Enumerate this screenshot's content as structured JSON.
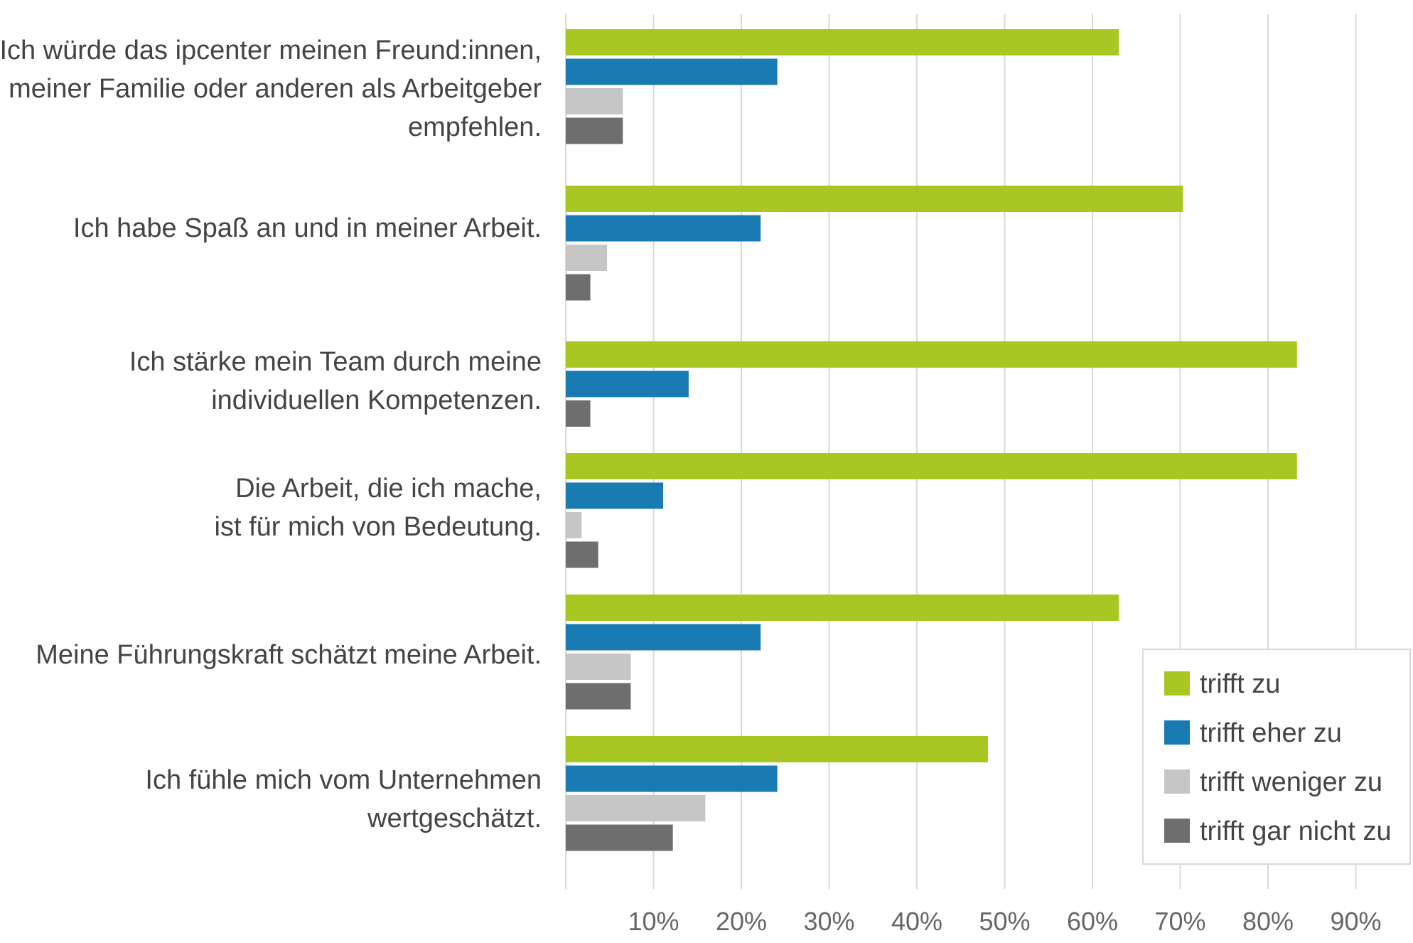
{
  "chart_data": {
    "type": "bar",
    "orientation": "horizontal",
    "title": "",
    "xlabel": "",
    "ylabel": "",
    "xlim": [
      0,
      90
    ],
    "x_ticks": [
      10,
      20,
      30,
      40,
      50,
      60,
      70,
      80,
      90
    ],
    "x_tick_labels": [
      "10%",
      "20%",
      "30%",
      "40%",
      "50%",
      "60%",
      "70%",
      "80%",
      "90%"
    ],
    "grid": "vertical",
    "legend_position": "bottom-right",
    "categories": [
      [
        "Ich würde das ipcenter meinen Freund:innen,",
        "meiner Familie oder anderen als Arbeitgeber",
        "empfehlen."
      ],
      [
        "Ich habe Spaß an und in meiner Arbeit."
      ],
      [
        "Ich stärke mein Team durch meine",
        "individuellen Kompetenzen."
      ],
      [
        "Die Arbeit, die ich mache,",
        "ist für mich von Bedeutung."
      ],
      [
        "Meine Führungskraft schätzt meine Arbeit."
      ],
      [
        "Ich fühle mich vom Unternehmen",
        "wertgeschätzt."
      ]
    ],
    "series": [
      {
        "name": "trifft zu",
        "color": "#a8c722",
        "values": [
          63,
          70.3,
          83.3,
          83.3,
          63,
          48.1
        ]
      },
      {
        "name": "trifft eher zu",
        "color": "#1a7bb3",
        "values": [
          24.1,
          22.2,
          14,
          11.1,
          22.2,
          24.1
        ]
      },
      {
        "name": "trifft weniger zu",
        "color": "#c6c6c6",
        "values": [
          6.5,
          4.7,
          0,
          1.8,
          7.4,
          15.9
        ]
      },
      {
        "name": "trifft gar nicht zu",
        "color": "#6e6e6e",
        "values": [
          6.5,
          2.8,
          2.8,
          3.7,
          7.4,
          12.2
        ]
      }
    ]
  }
}
